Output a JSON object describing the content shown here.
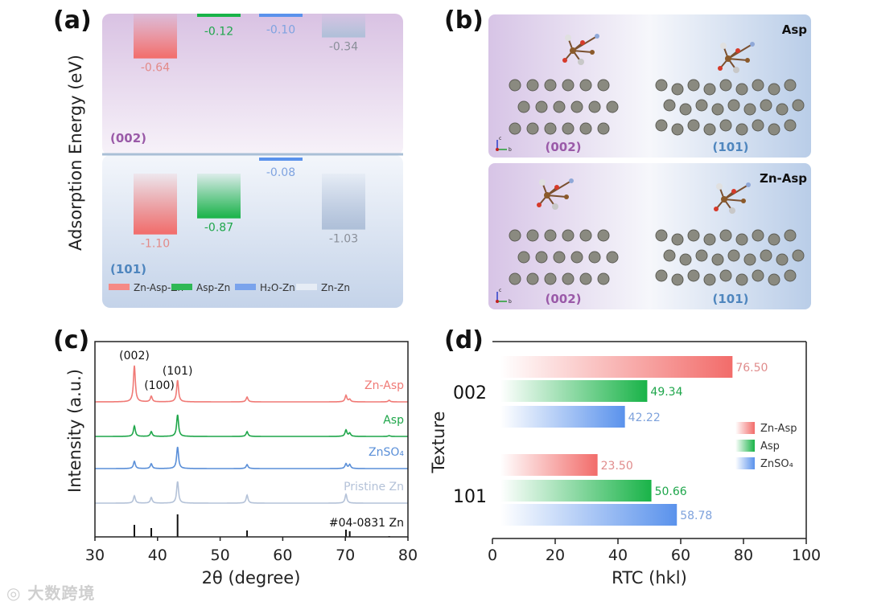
{
  "panels": {
    "a": "(a)",
    "b": "(b)",
    "c": "(c)",
    "d": "(d)"
  },
  "colors": {
    "red": "#f26c6a",
    "green": "#19b348",
    "blue": "#5a92ec",
    "grey": "#aebfd8",
    "purple": "#9a5aa8",
    "steel": "#4f86be"
  },
  "watermark": "大数跨境",
  "chart_data": [
    {
      "id": "a",
      "type": "bar",
      "ylabel": "Adsorption Energy (eV)",
      "categories": [
        "Zn-Asp-Zn",
        "Asp-Zn",
        "H2O-Zn",
        "Zn-Zn"
      ],
      "legend": [
        "Zn-Asp-Zn",
        "Asp-Zn",
        "H₂O-Zn",
        "Zn-Zn"
      ],
      "facets": [
        {
          "name": "(002)",
          "values": [
            -0.64,
            -0.12,
            -0.1,
            -0.34
          ],
          "labels": [
            "-0.64",
            "-0.12",
            "-0.10",
            "-0.34"
          ]
        },
        {
          "name": "(101)",
          "values": [
            -1.1,
            -0.87,
            -0.08,
            -1.03
          ],
          "labels": [
            "-1.10",
            "-0.87",
            "-0.08",
            "-1.03"
          ]
        }
      ]
    },
    {
      "id": "b",
      "type": "diagram",
      "rows": [
        {
          "molecule": "Asp",
          "surfaces": [
            "(002)",
            "(101)"
          ]
        },
        {
          "molecule": "Zn-Asp",
          "surfaces": [
            "(002)",
            "(101)"
          ]
        }
      ],
      "axes": [
        "c",
        "b"
      ]
    },
    {
      "id": "c",
      "type": "line",
      "xlabel": "2θ (degree)",
      "ylabel": "Intensity (a.u.)",
      "xlim": [
        30,
        80
      ],
      "xticks": [
        "30",
        "40",
        "50",
        "60",
        "70",
        "80"
      ],
      "peak_labels": [
        {
          "text": "(002)",
          "x": 36.3
        },
        {
          "text": "(100)",
          "x": 39.0
        },
        {
          "text": "(101)",
          "x": 43.2
        }
      ],
      "peak_positions": [
        36.3,
        39.0,
        43.2,
        54.3,
        70.1,
        70.7,
        77.0
      ],
      "series": [
        {
          "name": "Zn-Asp",
          "color": "#f07a76",
          "intensities": [
            45,
            7,
            27,
            6,
            8,
            3,
            2
          ]
        },
        {
          "name": "Asp",
          "color": "#1fa64a",
          "intensities": [
            13,
            6,
            27,
            6,
            8,
            4,
            1
          ]
        },
        {
          "name": "ZnSO₄",
          "color": "#5a8fd8",
          "intensities": [
            9,
            6,
            27,
            5,
            6,
            5,
            0
          ]
        },
        {
          "name": "Pristine Zn",
          "color": "#b4c2d8",
          "intensities": [
            9,
            7,
            27,
            10,
            11,
            0,
            0
          ]
        }
      ],
      "reference": {
        "name": "#04-0831 Zn",
        "intensities": [
          15,
          11,
          28,
          8,
          9,
          7,
          1
        ]
      }
    },
    {
      "id": "d",
      "type": "bar",
      "orientation": "horizontal",
      "xlabel": "RTC (hkl)",
      "ylabel": "Texture",
      "xlim": [
        0,
        100
      ],
      "xticks": [
        "0",
        "20",
        "40",
        "60",
        "80",
        "100"
      ],
      "categories": [
        "002",
        "101"
      ],
      "legend_position": "right",
      "series": [
        {
          "name": "Zn-Asp",
          "values": [
            76.5,
            23.5
          ],
          "labels": [
            "76.50",
            "23.50"
          ]
        },
        {
          "name": "Asp",
          "values": [
            49.34,
            50.66
          ],
          "labels": [
            "49.34",
            "50.66"
          ]
        },
        {
          "name": "ZnSO₄",
          "values": [
            42.22,
            58.78
          ],
          "labels": [
            "42.22",
            "58.78"
          ]
        }
      ]
    }
  ]
}
